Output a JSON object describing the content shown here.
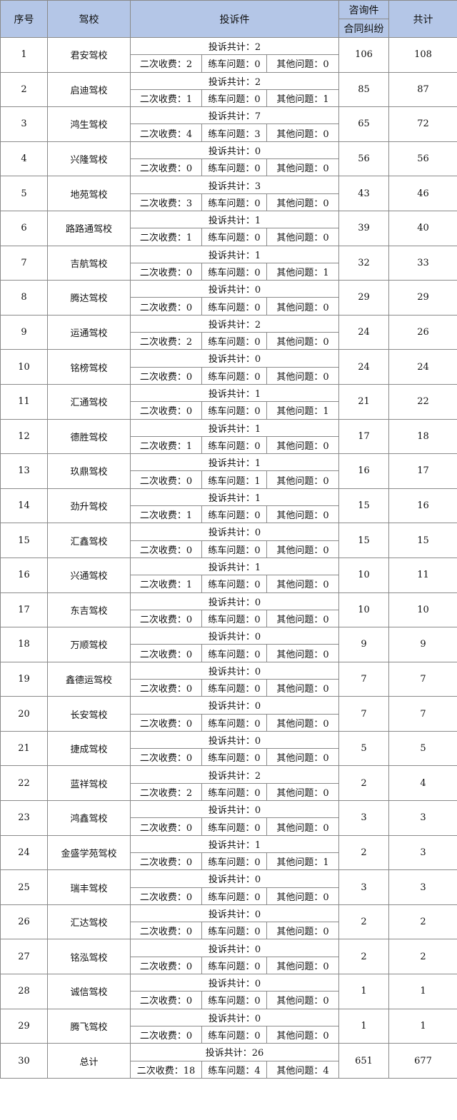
{
  "header": {
    "no": "序号",
    "school": "驾校",
    "complaints": "投诉件",
    "consult": "咨询件",
    "contract": "合同纠纷",
    "total": "共计"
  },
  "labels": {
    "complaint_total": "投诉共计：",
    "repeat_fee": "二次收费：",
    "practice": "练车问题：",
    "other": "其他问题："
  },
  "header_color": "#b4c6e7",
  "rows": [
    {
      "no": "1",
      "school": "君安驾校",
      "ct": "2",
      "fee": "2",
      "practice": "0",
      "other": "0",
      "consult": "106",
      "total": "108"
    },
    {
      "no": "2",
      "school": "启迪驾校",
      "ct": "2",
      "fee": "1",
      "practice": "0",
      "other": "1",
      "consult": "85",
      "total": "87"
    },
    {
      "no": "3",
      "school": "鸿生驾校",
      "ct": "7",
      "fee": "4",
      "practice": "3",
      "other": "0",
      "consult": "65",
      "total": "72"
    },
    {
      "no": "4",
      "school": "兴隆驾校",
      "ct": "0",
      "fee": "0",
      "practice": "0",
      "other": "0",
      "consult": "56",
      "total": "56"
    },
    {
      "no": "5",
      "school": "地苑驾校",
      "ct": "3",
      "fee": "3",
      "practice": "0",
      "other": "0",
      "consult": "43",
      "total": "46"
    },
    {
      "no": "6",
      "school": "路路通驾校",
      "ct": "1",
      "fee": "1",
      "practice": "0",
      "other": "0",
      "consult": "39",
      "total": "40"
    },
    {
      "no": "7",
      "school": "吉航驾校",
      "ct": "1",
      "fee": "0",
      "practice": "0",
      "other": "1",
      "consult": "32",
      "total": "33"
    },
    {
      "no": "8",
      "school": "腾达驾校",
      "ct": "0",
      "fee": "0",
      "practice": "0",
      "other": "0",
      "consult": "29",
      "total": "29"
    },
    {
      "no": "9",
      "school": "运通驾校",
      "ct": "2",
      "fee": "2",
      "practice": "0",
      "other": "0",
      "consult": "24",
      "total": "26"
    },
    {
      "no": "10",
      "school": "铭榜驾校",
      "ct": "0",
      "fee": "0",
      "practice": "0",
      "other": "0",
      "consult": "24",
      "total": "24"
    },
    {
      "no": "11",
      "school": "汇通驾校",
      "ct": "1",
      "fee": "0",
      "practice": "0",
      "other": "1",
      "consult": "21",
      "total": "22"
    },
    {
      "no": "12",
      "school": "德胜驾校",
      "ct": "1",
      "fee": "1",
      "practice": "0",
      "other": "0",
      "consult": "17",
      "total": "18"
    },
    {
      "no": "13",
      "school": "玖鼎驾校",
      "ct": "1",
      "fee": "0",
      "practice": "1",
      "other": "0",
      "consult": "16",
      "total": "17"
    },
    {
      "no": "14",
      "school": "劲升驾校",
      "ct": "1",
      "fee": "1",
      "practice": "0",
      "other": "0",
      "consult": "15",
      "total": "16"
    },
    {
      "no": "15",
      "school": "汇鑫驾校",
      "ct": "0",
      "fee": "0",
      "practice": "0",
      "other": "0",
      "consult": "15",
      "total": "15"
    },
    {
      "no": "16",
      "school": "兴通驾校",
      "ct": "1",
      "fee": "1",
      "practice": "0",
      "other": "0",
      "consult": "10",
      "total": "11"
    },
    {
      "no": "17",
      "school": "东吉驾校",
      "ct": "0",
      "fee": "0",
      "practice": "0",
      "other": "0",
      "consult": "10",
      "total": "10"
    },
    {
      "no": "18",
      "school": "万顺驾校",
      "ct": "0",
      "fee": "0",
      "practice": "0",
      "other": "0",
      "consult": "9",
      "total": "9"
    },
    {
      "no": "19",
      "school": "鑫德运驾校",
      "ct": "0",
      "fee": "0",
      "practice": "0",
      "other": "0",
      "consult": "7",
      "total": "7"
    },
    {
      "no": "20",
      "school": "长安驾校",
      "ct": "0",
      "fee": "0",
      "practice": "0",
      "other": "0",
      "consult": "7",
      "total": "7"
    },
    {
      "no": "21",
      "school": "捷成驾校",
      "ct": "0",
      "fee": "0",
      "practice": "0",
      "other": "0",
      "consult": "5",
      "total": "5"
    },
    {
      "no": "22",
      "school": "蓝祥驾校",
      "ct": "2",
      "fee": "2",
      "practice": "0",
      "other": "0",
      "consult": "2",
      "total": "4"
    },
    {
      "no": "23",
      "school": "鸿鑫驾校",
      "ct": "0",
      "fee": "0",
      "practice": "0",
      "other": "0",
      "consult": "3",
      "total": "3"
    },
    {
      "no": "24",
      "school": "金盛学苑驾校",
      "ct": "1",
      "fee": "0",
      "practice": "0",
      "other": "1",
      "consult": "2",
      "total": "3"
    },
    {
      "no": "25",
      "school": "瑞丰驾校",
      "ct": "0",
      "fee": "0",
      "practice": "0",
      "other": "0",
      "consult": "3",
      "total": "3"
    },
    {
      "no": "26",
      "school": "汇达驾校",
      "ct": "0",
      "fee": "0",
      "practice": "0",
      "other": "0",
      "consult": "2",
      "total": "2"
    },
    {
      "no": "27",
      "school": "铭泓驾校",
      "ct": "0",
      "fee": "0",
      "practice": "0",
      "other": "0",
      "consult": "2",
      "total": "2"
    },
    {
      "no": "28",
      "school": "诚信驾校",
      "ct": "0",
      "fee": "0",
      "practice": "0",
      "other": "0",
      "consult": "1",
      "total": "1"
    },
    {
      "no": "29",
      "school": "腾飞驾校",
      "ct": "0",
      "fee": "0",
      "practice": "0",
      "other": "0",
      "consult": "1",
      "total": "1"
    },
    {
      "no": "30",
      "school": "总计",
      "ct": "26",
      "fee": "18",
      "practice": "4",
      "other": "4",
      "consult": "651",
      "total": "677"
    }
  ]
}
